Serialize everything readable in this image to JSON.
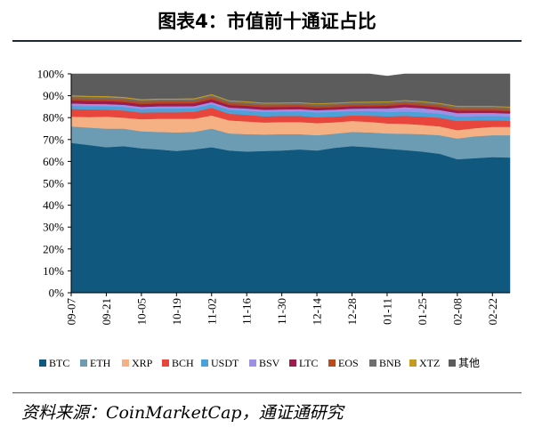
{
  "header": {
    "title": "图表4：市值前十通证占比"
  },
  "source": {
    "text": "资料来源：CoinMarketCap，通证通研究"
  },
  "chart_data": {
    "type": "area",
    "stacked": true,
    "title": "图表4：市值前十通证占比",
    "xlabel": "",
    "ylabel": "",
    "ylim": [
      0,
      100
    ],
    "yticks": [
      "0%",
      "10%",
      "20%",
      "30%",
      "40%",
      "50%",
      "60%",
      "70%",
      "80%",
      "90%",
      "100%"
    ],
    "xticks": [
      "09-07",
      "09-21",
      "10-05",
      "10-19",
      "11-02",
      "11-16",
      "11-30",
      "12-14",
      "12-28",
      "01-11",
      "01-25",
      "02-08",
      "02-22"
    ],
    "legend_position": "bottom",
    "x": [
      "09-07",
      "09-14",
      "09-21",
      "09-28",
      "10-05",
      "10-12",
      "10-19",
      "10-26",
      "11-02",
      "11-09",
      "11-16",
      "11-23",
      "11-30",
      "12-07",
      "12-14",
      "12-21",
      "12-28",
      "01-04",
      "01-11",
      "01-18",
      "01-25",
      "02-01",
      "02-08",
      "02-15",
      "02-22",
      "02-29"
    ],
    "series": [
      {
        "name": "BTC",
        "color": "#10587e",
        "values": [
          68.5,
          67.5,
          66.5,
          67.0,
          66.0,
          65.5,
          64.8,
          65.5,
          66.5,
          65.0,
          64.5,
          64.8,
          65.0,
          65.5,
          65.0,
          66.2,
          67.0,
          66.5,
          65.8,
          65.2,
          64.5,
          63.5,
          61.0,
          61.5,
          62.0,
          61.8
        ]
      },
      {
        "name": "ETH",
        "color": "#6c9cb4",
        "values": [
          7.5,
          8.0,
          8.5,
          8.0,
          7.8,
          8.0,
          8.5,
          8.0,
          8.5,
          7.8,
          8.0,
          7.5,
          7.5,
          7.0,
          7.0,
          6.5,
          6.5,
          6.8,
          7.0,
          7.5,
          8.0,
          8.5,
          9.5,
          10.0,
          10.0,
          10.2
        ]
      },
      {
        "name": "XRP",
        "color": "#f5b183",
        "values": [
          4.5,
          4.8,
          5.5,
          5.0,
          5.5,
          6.0,
          6.2,
          6.0,
          6.0,
          6.0,
          5.8,
          5.5,
          5.5,
          5.5,
          5.5,
          5.2,
          5.0,
          4.8,
          4.6,
          4.5,
          4.2,
          4.0,
          3.8,
          3.7,
          3.8,
          3.8
        ]
      },
      {
        "name": "BCH",
        "color": "#e8453c",
        "values": [
          3.5,
          3.5,
          3.2,
          3.3,
          3.0,
          3.0,
          3.0,
          3.2,
          3.5,
          3.0,
          3.0,
          2.8,
          2.8,
          2.8,
          2.7,
          2.6,
          2.5,
          2.8,
          3.2,
          3.6,
          3.8,
          4.0,
          4.2,
          3.5,
          3.0,
          2.8
        ]
      },
      {
        "name": "USDT",
        "color": "#4ca2d8",
        "values": [
          1.5,
          1.5,
          1.5,
          1.6,
          1.6,
          1.7,
          1.7,
          1.6,
          1.6,
          1.8,
          1.9,
          2.0,
          2.0,
          2.1,
          2.2,
          2.2,
          2.1,
          2.1,
          2.0,
          2.0,
          2.0,
          1.9,
          2.0,
          2.0,
          2.0,
          2.0
        ]
      },
      {
        "name": "BSV",
        "color": "#9f90e6",
        "values": [
          1.0,
          1.0,
          1.0,
          1.0,
          1.0,
          1.0,
          1.0,
          1.0,
          1.0,
          1.0,
          1.0,
          1.0,
          1.0,
          1.0,
          1.0,
          1.0,
          1.0,
          1.2,
          1.6,
          2.0,
          1.8,
          1.6,
          1.6,
          1.5,
          1.4,
          1.3
        ]
      },
      {
        "name": "LTC",
        "color": "#9e1b4d",
        "values": [
          1.5,
          1.4,
          1.4,
          1.3,
          1.3,
          1.3,
          1.3,
          1.3,
          1.3,
          1.2,
          1.2,
          1.2,
          1.1,
          1.1,
          1.1,
          1.1,
          1.1,
          1.1,
          1.2,
          1.2,
          1.2,
          1.2,
          1.2,
          1.1,
          1.1,
          1.1
        ]
      },
      {
        "name": "EOS",
        "color": "#b54a1c",
        "values": [
          1.0,
          1.0,
          1.0,
          1.0,
          1.0,
          1.0,
          1.0,
          1.0,
          1.1,
          1.0,
          0.9,
          0.9,
          0.9,
          0.9,
          0.9,
          0.9,
          0.9,
          0.9,
          0.9,
          0.9,
          0.9,
          0.9,
          0.9,
          0.9,
          0.9,
          0.9
        ]
      },
      {
        "name": "BNB",
        "color": "#6e6e6e",
        "values": [
          0.8,
          0.8,
          0.8,
          0.8,
          0.8,
          0.8,
          0.8,
          0.8,
          0.8,
          0.8,
          0.8,
          0.8,
          0.8,
          0.8,
          0.8,
          0.8,
          0.8,
          0.8,
          0.8,
          0.8,
          0.8,
          0.8,
          0.8,
          0.8,
          0.8,
          0.8
        ]
      },
      {
        "name": "XTZ",
        "color": "#c59a1e",
        "values": [
          0.5,
          0.5,
          0.5,
          0.5,
          0.5,
          0.5,
          0.5,
          0.5,
          0.5,
          0.4,
          0.4,
          0.4,
          0.4,
          0.4,
          0.4,
          0.4,
          0.4,
          0.4,
          0.4,
          0.4,
          0.4,
          0.4,
          0.4,
          0.4,
          0.4,
          0.4
        ]
      },
      {
        "name": "其他",
        "color": "#5c5c5c",
        "values": [
          9.7,
          10.0,
          10.1,
          10.5,
          11.5,
          11.2,
          11.2,
          11.1,
          9.2,
          12.0,
          12.5,
          13.1,
          13.0,
          12.9,
          13.4,
          13.1,
          12.7,
          12.6,
          11.5,
          11.9,
          12.4,
          13.2,
          14.6,
          14.6,
          14.6,
          14.9
        ]
      }
    ]
  }
}
